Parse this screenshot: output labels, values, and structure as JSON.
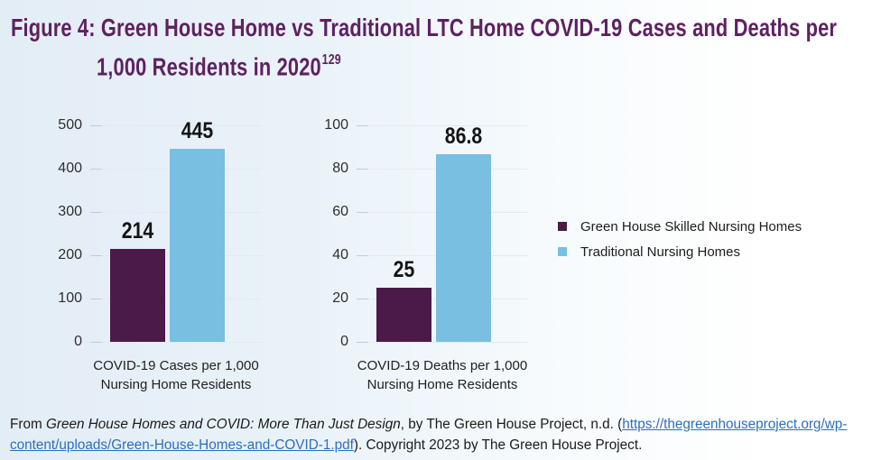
{
  "figure": {
    "title_line1": "Figure 4: Green House Home vs Traditional LTC Home COVID-19 Cases and Deaths per",
    "title_line2": "1,000 Residents in 2020",
    "footnote": "129"
  },
  "colors": {
    "background_left": "#e3edf6",
    "background_right": "#ffffff",
    "title": "#5e2161",
    "green_house": "#4b1a48",
    "traditional": "#79bfe2",
    "gridline": "#e6e9ed",
    "link": "#2b6fc0"
  },
  "chart_data": [
    {
      "type": "bar",
      "title": "",
      "categories": [
        "COVID-19 Cases per 1,000 Nursing Home Residents"
      ],
      "series": [
        {
          "name": "Green House Skilled Nursing Homes",
          "color_key": "green_house",
          "values": [
            214
          ]
        },
        {
          "name": "Traditional Nursing Homes",
          "color_key": "traditional",
          "values": [
            445
          ]
        }
      ],
      "ylim": [
        0,
        500
      ],
      "yticks": [
        0,
        100,
        200,
        300,
        400,
        500
      ],
      "grid": true,
      "legend_position": "right",
      "xlabel_line1": "COVID-19 Cases per 1,000",
      "xlabel_line2": "Nursing Home Residents"
    },
    {
      "type": "bar",
      "title": "",
      "categories": [
        "COVID-19 Deaths per 1,000 Nursing Home Residents"
      ],
      "series": [
        {
          "name": "Green House Skilled Nursing Homes",
          "color_key": "green_house",
          "values": [
            25
          ]
        },
        {
          "name": "Traditional Nursing Homes",
          "color_key": "traditional",
          "values": [
            86.8
          ]
        }
      ],
      "ylim": [
        0,
        100
      ],
      "yticks": [
        0,
        20,
        40,
        60,
        80,
        100
      ],
      "grid": true,
      "legend_position": "right",
      "xlabel_line1": "COVID-19 Deaths per 1,000",
      "xlabel_line2": "Nursing Home Residents"
    }
  ],
  "legend": {
    "items": [
      {
        "label": "Green House Skilled Nursing Homes",
        "color_key": "green_house"
      },
      {
        "label": "Traditional Nursing Homes",
        "color_key": "traditional"
      }
    ]
  },
  "citation": {
    "prefix": "From ",
    "source_italic": "Green House Homes and COVID: More Than Just Design",
    "mid": ", by The Green House Project, n.d. (",
    "url_line1": "https://thegreenhouseproject.org/wp-",
    "url_line2": "content/uploads/Green-House-Homes-and-COVID-1.pdf",
    "suffix": "). Copyright 2023 by The Green House Project.",
    "href": "https://thegreenhouseproject.org/wp-content/uploads/Green-House-Homes-and-COVID-1.pdf"
  }
}
